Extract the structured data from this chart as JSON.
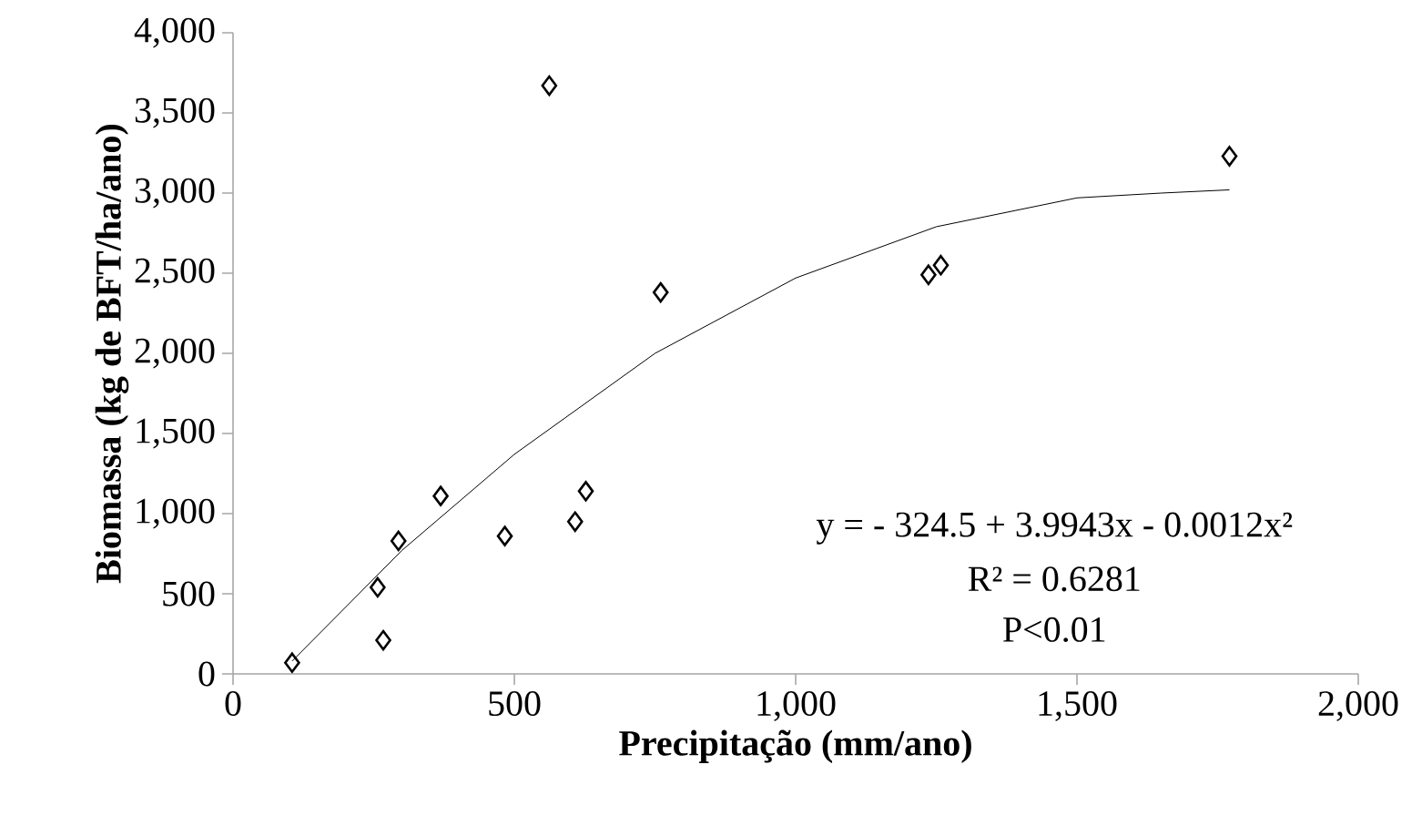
{
  "chart_data": {
    "type": "scatter",
    "xlabel": "Precipitação (mm/ano)",
    "ylabel": "Biomassa (kg de BFT/ha/ano)",
    "xlim": [
      0,
      2000
    ],
    "xticks": [
      0,
      500,
      {
        "value": 1000,
        "label": "1,000"
      },
      {
        "value": 1500,
        "label": "1,500"
      },
      {
        "value": 2000,
        "label": "2,000"
      }
    ],
    "ylim": [
      0,
      4000
    ],
    "yticks": [
      0,
      500,
      {
        "value": 1000,
        "label": "1,000"
      },
      {
        "value": 1500,
        "label": "1,500"
      },
      {
        "value": 2000,
        "label": "2,000"
      },
      {
        "value": 2500,
        "label": "2,500"
      },
      {
        "value": 3000,
        "label": "3,000"
      },
      {
        "value": 3500,
        "label": "3,500"
      },
      {
        "value": 4000,
        "label": "4,000"
      }
    ],
    "grid": false,
    "series": [
      {
        "marker": "diamond",
        "color": "#000000",
        "x": [
          105,
          257,
          267,
          294,
          369,
          483,
          562,
          608,
          627,
          760,
          1236,
          1258,
          1771
        ],
        "values": [
          70,
          540,
          210,
          830,
          1110,
          860,
          3670,
          950,
          1140,
          2380,
          2490,
          2550,
          3230
        ]
      },
      {
        "type": "line",
        "marker": "none",
        "color": "#000000",
        "x": [
          105,
          300,
          500,
          750,
          1000,
          1250,
          1500,
          1650,
          1771
        ],
        "values": [
          80,
          770,
          1370,
          2000,
          2470,
          2790,
          2970,
          3000,
          3020
        ]
      }
    ],
    "annotations": [
      "y = - 324.5 + 3.9943x - 0.0012x²",
      "R² = 0.6281",
      "P<0.01"
    ]
  }
}
